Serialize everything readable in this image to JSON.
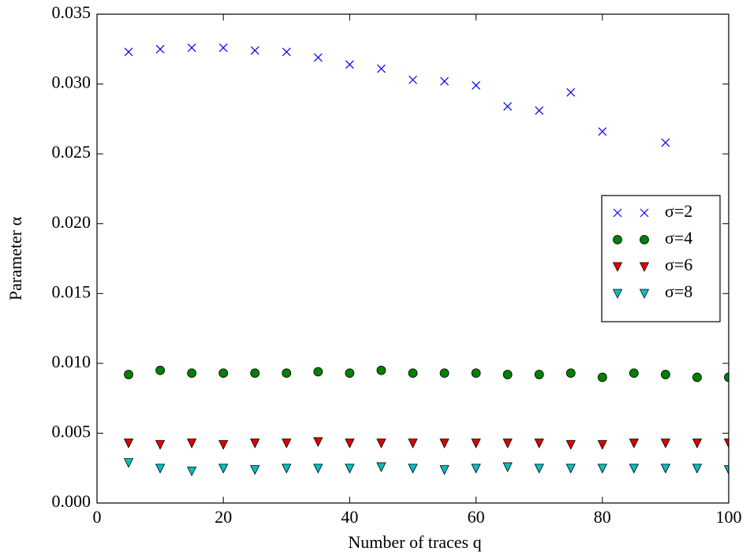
{
  "chart_data": {
    "type": "scatter",
    "xlabel": "Number of traces q",
    "ylabel": "Parameter α",
    "xlim": [
      0,
      100
    ],
    "xticks": [
      0,
      20,
      40,
      60,
      80,
      100
    ],
    "ylim": [
      0,
      0.035
    ],
    "yticks": [
      {
        "value": 0,
        "label": "0.000"
      },
      {
        "value": 0.005,
        "label": "0.005"
      },
      {
        "value": 0.01,
        "label": "0.010"
      },
      {
        "value": 0.015,
        "label": "0.015"
      },
      {
        "value": 0.02,
        "label": "0.020"
      },
      {
        "value": 0.025,
        "label": "0.025"
      },
      {
        "value": 0.03,
        "label": "0.030"
      },
      {
        "value": 0.035,
        "label": "0.035"
      }
    ],
    "legend": "center right",
    "series": [
      {
        "name": "σ=2",
        "color": "#0000ff",
        "marker": "x",
        "x": [
          5,
          10,
          15,
          20,
          25,
          30,
          35,
          40,
          45,
          50,
          55,
          60,
          65,
          70,
          75,
          80,
          90
        ],
        "values": [
          0.0323,
          0.0325,
          0.0326,
          0.0326,
          0.0324,
          0.0323,
          0.0319,
          0.0314,
          0.0311,
          0.0303,
          0.0302,
          0.0299,
          0.0284,
          0.0281,
          0.0294,
          0.0266,
          0.0258
        ]
      },
      {
        "name": "σ=4",
        "color": "#008000",
        "marker": "o",
        "x": [
          5,
          10,
          15,
          20,
          25,
          30,
          35,
          40,
          45,
          50,
          55,
          60,
          65,
          70,
          75,
          80,
          85,
          90,
          95,
          100
        ],
        "values": [
          0.0092,
          0.0095,
          0.0093,
          0.0093,
          0.0093,
          0.0093,
          0.0094,
          0.0093,
          0.0095,
          0.0093,
          0.0093,
          0.0093,
          0.0092,
          0.0092,
          0.0093,
          0.009,
          0.0093,
          0.0092,
          0.009,
          0.009
        ]
      },
      {
        "name": "σ=6",
        "color": "#e00000",
        "marker": "v",
        "x": [
          5,
          10,
          15,
          20,
          25,
          30,
          35,
          40,
          45,
          50,
          55,
          60,
          65,
          70,
          75,
          80,
          85,
          90,
          95,
          100
        ],
        "values": [
          0.0043,
          0.0042,
          0.0043,
          0.0042,
          0.0043,
          0.0043,
          0.0044,
          0.0043,
          0.0043,
          0.0043,
          0.0043,
          0.0043,
          0.0043,
          0.0043,
          0.0042,
          0.0042,
          0.0043,
          0.0043,
          0.0043,
          0.0043
        ]
      },
      {
        "name": "σ=8",
        "color": "#00bfbf",
        "marker": "v",
        "x": [
          5,
          10,
          15,
          20,
          25,
          30,
          35,
          40,
          45,
          50,
          55,
          60,
          65,
          70,
          75,
          80,
          85,
          90,
          95,
          100
        ],
        "values": [
          0.0029,
          0.0025,
          0.0023,
          0.0025,
          0.0024,
          0.0025,
          0.0025,
          0.0025,
          0.0026,
          0.0025,
          0.0024,
          0.0025,
          0.0026,
          0.0025,
          0.0025,
          0.0025,
          0.0025,
          0.0025,
          0.0025,
          0.0024
        ]
      }
    ]
  }
}
